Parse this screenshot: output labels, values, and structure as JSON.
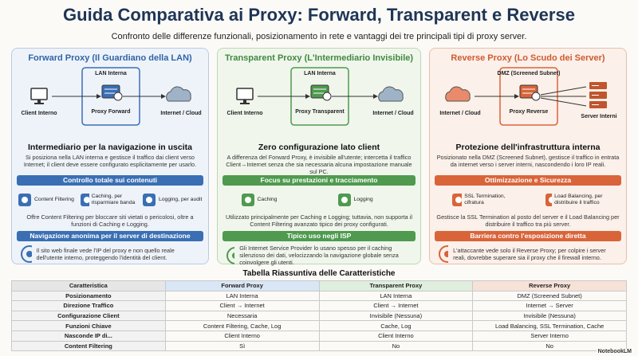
{
  "header": {
    "title": "Guida Comparativa ai Proxy: Forward, Transparent e Reverse",
    "subtitle": "Confronto delle differenze funzionali, posizionamento in rete e vantaggi dei tre principali tipi di proxy server."
  },
  "panels": [
    {
      "title": "Forward Proxy (Il Guardiano della LAN)",
      "diagram": {
        "zone": "LAN Interna",
        "left": "Client Interno",
        "center": "Proxy Forward",
        "right": "Internet / Cloud"
      },
      "heading": "Intermediario per la navigazione in uscita",
      "text": "Si posiziona nella LAN interna e gestisce il traffico dai client verso Internet; il client deve essere configurato esplicitamente per usarlo.",
      "section1": {
        "title": "Controllo totale sui contenuti",
        "features": [
          "Content Filtering",
          "Caching, per risparmiare banda",
          "Logging, per audit"
        ],
        "text": "Offre Content Filtering per bloccare siti vietati o pericolosi, oltre a funzioni di Caching e Logging."
      },
      "section2": {
        "title": "Navigazione anonima per il server di destinazione",
        "text": "Il sito web finale vede l'IP del proxy e non quello reale dell'utente interno, proteggendo l'identità del client."
      }
    },
    {
      "title": "Transparent Proxy (L'Intermediario Invisibile)",
      "diagram": {
        "zone": "LAN Interna",
        "left": "Client Interno",
        "center": "Proxy Transparent",
        "right": "Internet / Cloud"
      },
      "heading": "Zero configurazione lato client",
      "text": "A differenza del Forward Proxy, è invisibile all'utente; intercetta il traffico Client→Internet senza che sia necessaria alcuna impostazione manuale sul PC.",
      "section1": {
        "title": "Focus su prestazioni e tracciamento",
        "features": [
          "Caching",
          "Logging"
        ],
        "text": "Utilizzato principalmente per Caching e Logging; tuttavia, non supporta il Content Filtering avanzato tipico dei proxy configurati."
      },
      "section2": {
        "title": "Tipico uso negli ISP",
        "text": "Gli Internet Service Provider lo usano spesso per il caching silenzioso dei dati, velocizzando la navigazione globale senza coinvolgere gli utenti."
      }
    },
    {
      "title": "Reverse Proxy (Lo Scudo dei Server)",
      "diagram": {
        "zone": "DMZ (Screened Subnet)",
        "left": "Internet / Cloud",
        "center": "Proxy Reverse",
        "right": "Server Interni"
      },
      "heading": "Protezione dell'infrastruttura interna",
      "text": "Posizionato nella DMZ (Screened Subnet), gestisce il traffico in entrata da internet verso i server interni, nascondendo i loro IP reali.",
      "section1": {
        "title": "Ottimizzazione e Sicurezza",
        "features": [
          "SSL Termination, cifratura",
          "Load Balancing, per distribuire il traffico"
        ],
        "text": "Gestisce la SSL Termination al posto del server e il Load Balancing per distribuire il traffico tra più server."
      },
      "section2": {
        "title": "Barriera contro l'esposizione diretta",
        "text": "L'attaccante vede solo il Reverse Proxy; per colpire i server reali, dovrebbe superare sia il proxy che il firewall interno."
      }
    }
  ],
  "table": {
    "title": "Tabella Riassuntiva delle Caratteristiche",
    "header": [
      "Caratteristica",
      "Forward Proxy",
      "Transparent Proxy",
      "Reverse Proxy"
    ],
    "rows": [
      [
        "Posizionamento",
        "LAN Interna",
        "LAN Interna",
        "DMZ (Screened Subnet)"
      ],
      [
        "Direzione Traffico",
        "Client → Internet",
        "Client → Internet",
        "Internet → Server"
      ],
      [
        "Configurazione Client",
        "Necessaria",
        "Invisibile (Nessuna)",
        "Invisibile (Nessuna)"
      ],
      [
        "Funzioni Chiave",
        "Content Filtering, Cache, Log",
        "Cache, Log",
        "Load Balancing, SSL Termination, Cache"
      ],
      [
        "Nasconde IP di...",
        "Client Interno",
        "Client Interno",
        "Server Interno"
      ],
      [
        "Content Filtering",
        "Sì",
        "No",
        "No"
      ]
    ]
  },
  "footer": {
    "brand": "NotebookLM"
  }
}
